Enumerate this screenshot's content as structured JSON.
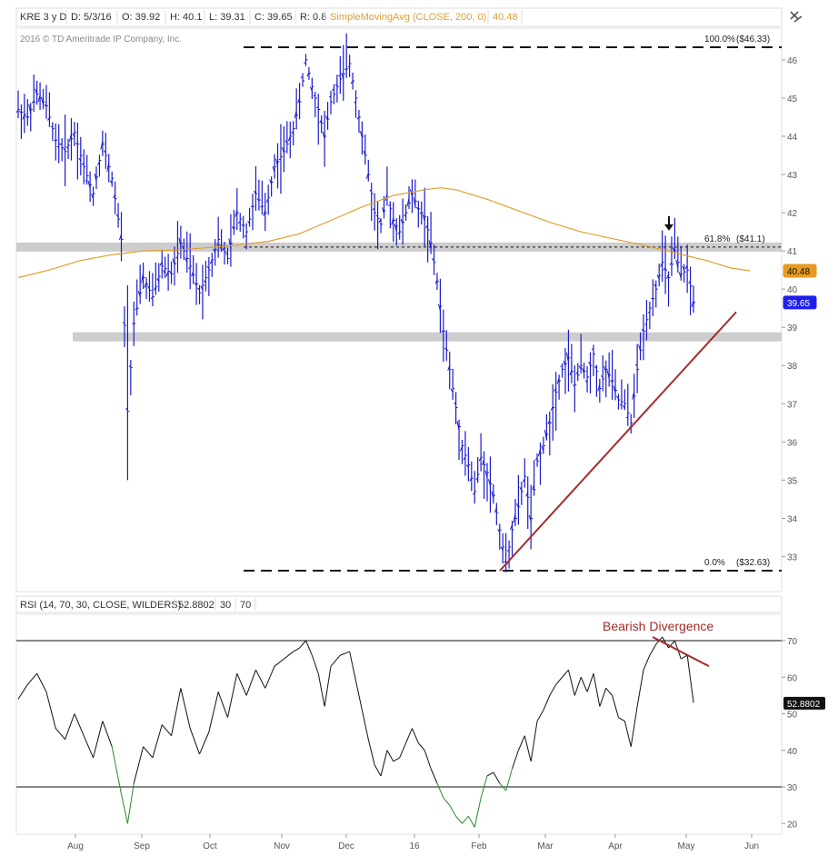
{
  "header": {
    "symbol": "KRE 3 y D",
    "date": "D: 5/3/16",
    "open": "O: 39.92",
    "high": "H: 40.1",
    "low": "L: 39.31",
    "close": "C: 39.65",
    "range": "R: 0.8",
    "study": "SimpleMovingAvg (CLOSE, 200, 0)",
    "study_value": "40.48"
  },
  "copyright": "2016 © TD Ameritrade IP Company, Inc.",
  "colors": {
    "price_bars": "#1a1acc",
    "sma": "#e0a030",
    "trendline": "#a52a2a",
    "rsi_line": "#111111",
    "rsi_oversold": "#2a8a2a",
    "band": "#c8c8c8",
    "last_price_badge": "#2020ee",
    "sma_badge": "#e89a20"
  },
  "chart_data": [
    {
      "type": "ohlc",
      "name": "price",
      "ylim": [
        32.3,
        47
      ],
      "y_ticks": [
        "33",
        "34",
        "35",
        "36",
        "37",
        "38",
        "39",
        "40",
        "41",
        "42",
        "43",
        "44",
        "45",
        "46",
        "47"
      ],
      "x_months": [
        "Aug",
        "Sep",
        "Oct",
        "Nov",
        "Dec",
        "16",
        "Feb",
        "Mar",
        "Apr",
        "May",
        "Jun"
      ],
      "fib_levels": [
        {
          "label": "100.0%",
          "price_text": "($46.33)",
          "value": 46.33
        },
        {
          "label": "61.8%",
          "price_text": "($41.1)",
          "value": 41.1
        },
        {
          "label": "0.0%",
          "price_text": "($32.63)",
          "value": 32.63
        }
      ],
      "support_bands": [
        41.1,
        38.75
      ],
      "last_price": "39.65",
      "sma_value": "40.48",
      "arrow_annotation": "down-arrow at April high near 41.1",
      "trendline": {
        "from_date": "2016-02-11",
        "from_value": 32.63,
        "to_date": "2016-05-12",
        "to_value": 39.4
      },
      "sma_points": [
        [
          0,
          40.3
        ],
        [
          10,
          40.5
        ],
        [
          20,
          40.75
        ],
        [
          30,
          40.9
        ],
        [
          40,
          41.0
        ],
        [
          50,
          41.02
        ],
        [
          60,
          41.08
        ],
        [
          70,
          41.15
        ],
        [
          80,
          41.25
        ],
        [
          90,
          41.45
        ],
        [
          100,
          41.8
        ],
        [
          110,
          42.15
        ],
        [
          120,
          42.45
        ],
        [
          130,
          42.6
        ],
        [
          135,
          42.65
        ],
        [
          140,
          42.6
        ],
        [
          150,
          42.35
        ],
        [
          160,
          42.05
        ],
        [
          170,
          41.75
        ],
        [
          180,
          41.5
        ],
        [
          190,
          41.32
        ],
        [
          200,
          41.15
        ],
        [
          210,
          40.95
        ],
        [
          220,
          40.75
        ],
        [
          228,
          40.55
        ],
        [
          234,
          40.48
        ]
      ],
      "close_points": [
        [
          0,
          44.7
        ],
        [
          3,
          44.5
        ],
        [
          6,
          45.1
        ],
        [
          9,
          44.8
        ],
        [
          12,
          43.9
        ],
        [
          15,
          43.6
        ],
        [
          18,
          44.1
        ],
        [
          21,
          43.2
        ],
        [
          24,
          42.5
        ],
        [
          27,
          43.8
        ],
        [
          30,
          42.9
        ],
        [
          33,
          41.3
        ],
        [
          35,
          36.8
        ],
        [
          37,
          39.1
        ],
        [
          40,
          40.3
        ],
        [
          43,
          39.8
        ],
        [
          46,
          40.6
        ],
        [
          49,
          40.4
        ],
        [
          52,
          41.2
        ],
        [
          55,
          40.6
        ],
        [
          58,
          39.9
        ],
        [
          61,
          40.5
        ],
        [
          64,
          41.3
        ],
        [
          67,
          40.8
        ],
        [
          70,
          42.0
        ],
        [
          73,
          41.5
        ],
        [
          76,
          42.5
        ],
        [
          79,
          42.0
        ],
        [
          82,
          43.2
        ],
        [
          85,
          43.6
        ],
        [
          88,
          44.2
        ],
        [
          90,
          44.9
        ],
        [
          92,
          46.0
        ],
        [
          94,
          45.3
        ],
        [
          96,
          44.7
        ],
        [
          98,
          44.0
        ],
        [
          100,
          44.9
        ],
        [
          103,
          45.5
        ],
        [
          106,
          45.9
        ],
        [
          108,
          45.0
        ],
        [
          110,
          44.0
        ],
        [
          112,
          43.0
        ],
        [
          114,
          42.0
        ],
        [
          116,
          41.7
        ],
        [
          118,
          42.4
        ],
        [
          120,
          41.8
        ],
        [
          122,
          41.5
        ],
        [
          124,
          42.0
        ],
        [
          126,
          42.5
        ],
        [
          128,
          42.1
        ],
        [
          130,
          41.9
        ],
        [
          132,
          41.2
        ],
        [
          134,
          40.2
        ],
        [
          136,
          38.9
        ],
        [
          138,
          37.9
        ],
        [
          140,
          36.9
        ],
        [
          142,
          35.9
        ],
        [
          144,
          35.4
        ],
        [
          146,
          34.7
        ],
        [
          148,
          35.6
        ],
        [
          150,
          35.2
        ],
        [
          152,
          34.6
        ],
        [
          154,
          33.7
        ],
        [
          156,
          32.8
        ],
        [
          158,
          33.7
        ],
        [
          160,
          34.3
        ],
        [
          162,
          35.1
        ],
        [
          164,
          34.0
        ],
        [
          166,
          35.5
        ],
        [
          168,
          35.9
        ],
        [
          170,
          36.5
        ],
        [
          172,
          37.3
        ],
        [
          174,
          37.9
        ],
        [
          176,
          38.2
        ],
        [
          178,
          37.5
        ],
        [
          180,
          38.0
        ],
        [
          182,
          37.7
        ],
        [
          184,
          38.3
        ],
        [
          186,
          37.4
        ],
        [
          188,
          37.9
        ],
        [
          190,
          37.6
        ],
        [
          192,
          37.1
        ],
        [
          194,
          37.0
        ],
        [
          196,
          36.5
        ],
        [
          198,
          37.9
        ],
        [
          200,
          38.9
        ],
        [
          202,
          39.5
        ],
        [
          204,
          40.0
        ],
        [
          206,
          40.7
        ],
        [
          208,
          40.3
        ],
        [
          210,
          41.0
        ],
        [
          212,
          40.4
        ],
        [
          214,
          40.5
        ],
        [
          216,
          39.65
        ]
      ]
    },
    {
      "type": "line",
      "name": "rsi",
      "label": "RSI (14, 70, 30, CLOSE, WILDERS)",
      "value_text": "52.8802",
      "param1": "30",
      "param2": "70",
      "ylim": [
        17,
        76
      ],
      "y_ticks": [
        "20",
        "30",
        "40",
        "50",
        "60",
        "70"
      ],
      "overbought": 70,
      "oversold": 30,
      "last_value": "52.8802",
      "annotation": "Bearish Divergence",
      "divergence_line": {
        "from_rsi": 71,
        "to_rsi": 63
      },
      "points": [
        [
          0,
          54
        ],
        [
          3,
          58
        ],
        [
          6,
          61
        ],
        [
          9,
          56
        ],
        [
          12,
          46
        ],
        [
          15,
          43
        ],
        [
          18,
          50
        ],
        [
          21,
          44
        ],
        [
          24,
          38
        ],
        [
          27,
          48
        ],
        [
          30,
          41
        ],
        [
          33,
          28
        ],
        [
          35,
          20
        ],
        [
          37,
          31
        ],
        [
          40,
          41
        ],
        [
          43,
          38
        ],
        [
          46,
          47
        ],
        [
          49,
          44
        ],
        [
          52,
          57
        ],
        [
          55,
          46
        ],
        [
          58,
          39
        ],
        [
          61,
          45
        ],
        [
          64,
          56
        ],
        [
          67,
          49
        ],
        [
          70,
          61
        ],
        [
          73,
          55
        ],
        [
          76,
          62
        ],
        [
          79,
          57
        ],
        [
          82,
          63
        ],
        [
          85,
          65
        ],
        [
          88,
          67
        ],
        [
          90,
          68
        ],
        [
          92,
          70
        ],
        [
          94,
          66
        ],
        [
          96,
          61
        ],
        [
          98,
          52
        ],
        [
          100,
          63
        ],
        [
          103,
          66
        ],
        [
          106,
          67
        ],
        [
          108,
          59
        ],
        [
          110,
          51
        ],
        [
          112,
          43
        ],
        [
          114,
          36
        ],
        [
          116,
          33
        ],
        [
          118,
          40
        ],
        [
          120,
          37
        ],
        [
          122,
          38
        ],
        [
          124,
          42
        ],
        [
          126,
          46
        ],
        [
          128,
          42
        ],
        [
          130,
          40
        ],
        [
          132,
          35
        ],
        [
          134,
          31
        ],
        [
          136,
          27
        ],
        [
          138,
          25
        ],
        [
          140,
          22
        ],
        [
          142,
          20
        ],
        [
          144,
          22
        ],
        [
          146,
          19
        ],
        [
          148,
          27
        ],
        [
          150,
          33
        ],
        [
          152,
          34
        ],
        [
          154,
          31
        ],
        [
          156,
          29
        ],
        [
          158,
          35
        ],
        [
          160,
          40
        ],
        [
          162,
          44
        ],
        [
          164,
          37
        ],
        [
          166,
          48
        ],
        [
          168,
          51
        ],
        [
          170,
          55
        ],
        [
          172,
          58
        ],
        [
          174,
          60
        ],
        [
          176,
          62
        ],
        [
          178,
          55
        ],
        [
          180,
          60
        ],
        [
          182,
          56
        ],
        [
          184,
          61
        ],
        [
          186,
          52
        ],
        [
          188,
          57
        ],
        [
          190,
          55
        ],
        [
          192,
          49
        ],
        [
          194,
          48
        ],
        [
          196,
          41
        ],
        [
          198,
          52
        ],
        [
          200,
          62
        ],
        [
          202,
          66
        ],
        [
          204,
          69
        ],
        [
          206,
          71
        ],
        [
          208,
          68
        ],
        [
          210,
          70
        ],
        [
          212,
          65
        ],
        [
          214,
          66
        ],
        [
          216,
          53
        ]
      ]
    }
  ]
}
